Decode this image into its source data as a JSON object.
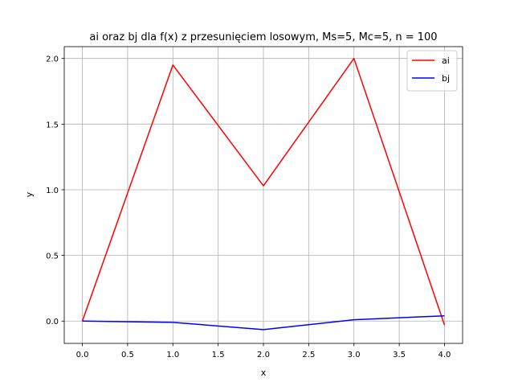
{
  "chart_data": {
    "type": "line",
    "title": "ai oraz bj dla f(x) z przesunięciem losowym, Ms=5, Mc=5, n = 100",
    "xlabel": "x",
    "ylabel": "y",
    "xlim": [
      -0.2,
      4.2
    ],
    "ylim": [
      -0.17,
      2.09
    ],
    "grid": true,
    "legend": "upper right",
    "xticks": [
      0.0,
      0.5,
      1.0,
      1.5,
      2.0,
      2.5,
      3.0,
      3.5,
      4.0
    ],
    "xtick_labels": [
      "0.0",
      "0.5",
      "1.0",
      "1.5",
      "2.0",
      "2.5",
      "3.0",
      "3.5",
      "4.0"
    ],
    "yticks": [
      0.0,
      0.5,
      1.0,
      1.5,
      2.0
    ],
    "ytick_labels": [
      "0.0",
      "0.5",
      "1.0",
      "1.5",
      "2.0"
    ],
    "series": [
      {
        "name": "ai",
        "color": "#ff0000",
        "x": [
          0,
          1,
          2,
          3,
          4
        ],
        "y": [
          0.0,
          1.95,
          1.03,
          2.0,
          -0.03
        ]
      },
      {
        "name": "bj",
        "color": "#0000ff",
        "x": [
          0,
          1,
          2,
          3,
          4
        ],
        "y": [
          0.0,
          -0.01,
          -0.065,
          0.01,
          0.04
        ]
      }
    ]
  }
}
